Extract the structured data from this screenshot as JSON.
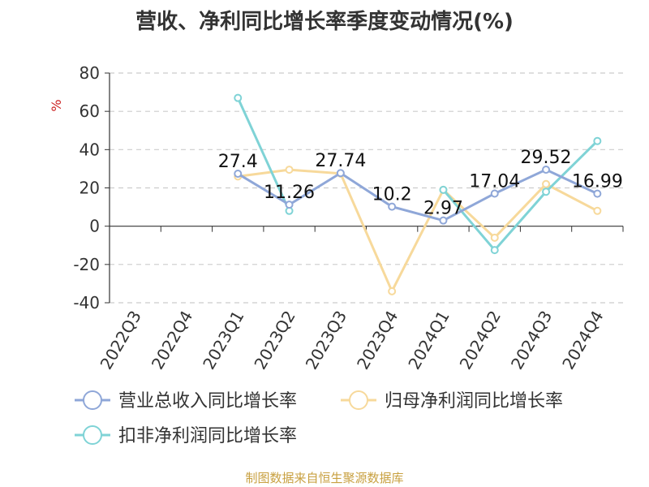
{
  "chart_data": {
    "type": "line",
    "title": "营收、净利同比增长率季度变动情况(%)",
    "ylabel": "%",
    "xlabel": "",
    "ylim": [
      -40,
      80
    ],
    "yticks": [
      80,
      60,
      40,
      20,
      0,
      -20,
      -40
    ],
    "grid": true,
    "legend_position": "bottom",
    "categories": [
      "2022Q3",
      "2022Q4",
      "2023Q1",
      "2023Q2",
      "2023Q3",
      "2023Q4",
      "2024Q1",
      "2024Q2",
      "2024Q3",
      "2024Q4"
    ],
    "series": [
      {
        "name": "营业总收入同比增长率",
        "color": "#8fa7d8",
        "values": [
          null,
          null,
          27.4,
          11.26,
          27.74,
          10.2,
          2.97,
          17.04,
          29.52,
          16.99
        ],
        "labels": [
          "",
          "",
          "27.4",
          "11.26",
          "27.74",
          "10.2",
          "2.97",
          "17.04",
          "29.52",
          "16.99"
        ]
      },
      {
        "name": "归母净利润同比增长率",
        "color": "#f7d99b",
        "values": [
          null,
          null,
          26,
          29.5,
          27.5,
          -34,
          19,
          -6,
          22,
          8
        ]
      },
      {
        "name": "扣非净利润同比增长率",
        "color": "#7fd3d6",
        "values": [
          null,
          null,
          67,
          8,
          null,
          null,
          19,
          -12.5,
          18,
          44.5
        ]
      }
    ]
  },
  "footer": {
    "source": "制图数据来自恒生聚源数据库"
  }
}
